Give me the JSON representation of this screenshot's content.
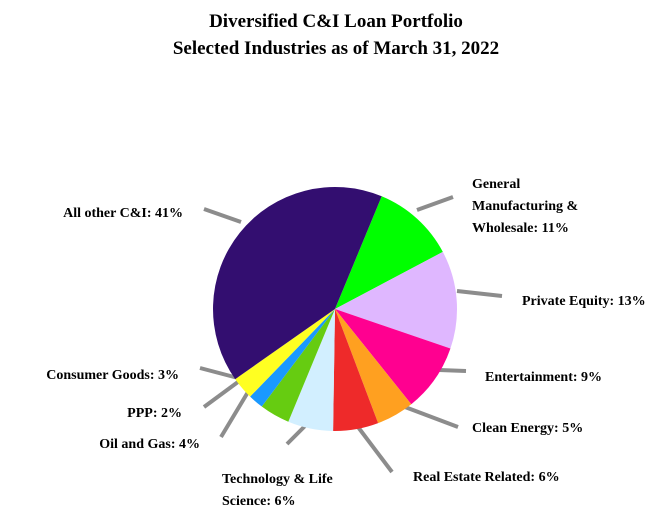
{
  "chart_data": {
    "type": "pie",
    "title": "Diversified C&I Loan Portfolio",
    "subtitle": "Selected Industries as of March 31, 2022",
    "unit": "%",
    "slices": [
      {
        "label": "General Manufacturing & Wholesale",
        "label_lines": [
          "General",
          "Manufacturing &",
          "Wholesale: 11%"
        ],
        "value": 11,
        "color": "#00ff00"
      },
      {
        "label": "Private Equity",
        "label_lines": [
          "Private Equity: 13%"
        ],
        "value": 13,
        "color": "#dfb7ff"
      },
      {
        "label": "Entertainment",
        "label_lines": [
          "Entertainment: 9%"
        ],
        "value": 9,
        "color": "#ff0090"
      },
      {
        "label": "Clean Energy",
        "label_lines": [
          "Clean Energy: 5%"
        ],
        "value": 5,
        "color": "#ffa020"
      },
      {
        "label": "Real Estate Related",
        "label_lines": [
          "Real Estate Related: 6%"
        ],
        "value": 6,
        "color": "#ee2a2a"
      },
      {
        "label": "Technology & Life Science",
        "label_lines": [
          "Technology & Life",
          "Science: 6%"
        ],
        "value": 6,
        "color": "#d2efff"
      },
      {
        "label": "Oil and Gas",
        "label_lines": [
          "Oil and Gas: 4%"
        ],
        "value": 4,
        "color": "#66cc11"
      },
      {
        "label": "PPP",
        "label_lines": [
          "PPP: 2%"
        ],
        "value": 2,
        "color": "#1a99ff"
      },
      {
        "label": "Consumer Goods",
        "label_lines": [
          "Consumer Goods: 3%"
        ],
        "value": 3,
        "color": "#ffff22"
      },
      {
        "label": "All other C&I",
        "label_lines": [
          "All other C&I: 41%"
        ],
        "value": 41,
        "color": "#330e70"
      }
    ],
    "start_slice": "General Manufacturing & Wholesale",
    "direction": "clockwise",
    "legend": "none",
    "leader_color": "#8c8c8c"
  }
}
